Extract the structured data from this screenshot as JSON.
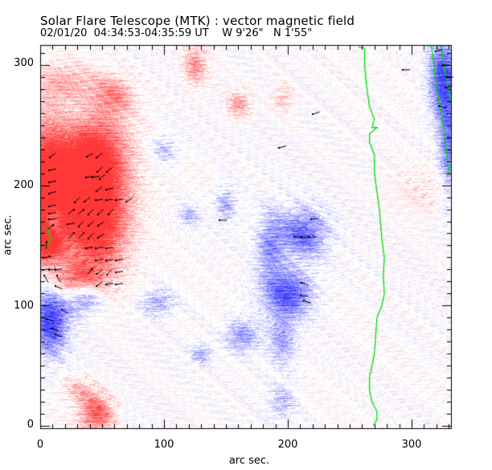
{
  "header": {
    "title": "Solar Flare Telescope (MTK) : vector magnetic field",
    "date": "02/01/20",
    "time_range": "04:34:53-04:35:59 UT",
    "lon": "W 9'26\"",
    "lat": "N 1'55\""
  },
  "chart_data": {
    "type": "heatmap",
    "title": "Solar Flare Telescope (MTK) : vector magnetic field",
    "subtitle": "02/01/20  04:34:53-04:35:59 UT    W 9'26\"   N 1'55\"",
    "xlabel": "arc sec.",
    "ylabel": "arc sec.",
    "xlim": [
      0,
      332
    ],
    "ylim": [
      0,
      318
    ],
    "xticks": [
      0,
      100,
      200,
      300
    ],
    "yticks": [
      0,
      100,
      200,
      300
    ],
    "xtick_labels": [
      "0",
      "100",
      "200",
      "300"
    ],
    "ytick_labels": [
      "0",
      "100",
      "200",
      "300"
    ],
    "minor_tick_step": 10,
    "colors": {
      "positive": "#ff4040",
      "negative": "#4040ff",
      "contour": "#00e000",
      "vector": "#000000",
      "background": "#ffffff"
    },
    "positive_regions": [
      {
        "x": 5,
        "y": 200,
        "sx": 12,
        "sy": 40,
        "a": 0.95
      },
      {
        "x": 35,
        "y": 200,
        "sx": 25,
        "sy": 30,
        "a": 0.9
      },
      {
        "x": 45,
        "y": 160,
        "sx": 18,
        "sy": 30,
        "a": 0.85
      },
      {
        "x": 5,
        "y": 155,
        "sx": 8,
        "sy": 12,
        "a": 1.0
      },
      {
        "x": 45,
        "y": 230,
        "sx": 18,
        "sy": 22,
        "a": 0.7
      },
      {
        "x": 60,
        "y": 275,
        "sx": 12,
        "sy": 12,
        "a": 0.5
      },
      {
        "x": 20,
        "y": 285,
        "sx": 20,
        "sy": 12,
        "a": 0.4
      },
      {
        "x": 125,
        "y": 300,
        "sx": 7,
        "sy": 12,
        "a": 0.6
      },
      {
        "x": 160,
        "y": 268,
        "sx": 7,
        "sy": 8,
        "a": 0.55
      },
      {
        "x": 196,
        "y": 273,
        "sx": 6,
        "sy": 8,
        "a": 0.35
      },
      {
        "x": 30,
        "y": 120,
        "sx": 14,
        "sy": 10,
        "a": 0.7
      },
      {
        "x": 45,
        "y": 10,
        "sx": 10,
        "sy": 12,
        "a": 0.85
      },
      {
        "x": 30,
        "y": 30,
        "sx": 10,
        "sy": 8,
        "a": 0.35
      },
      {
        "x": 310,
        "y": 195,
        "sx": 20,
        "sy": 15,
        "a": 0.2
      }
    ],
    "negative_regions": [
      {
        "x": 8,
        "y": 88,
        "sx": 10,
        "sy": 20,
        "a": 1.0
      },
      {
        "x": 35,
        "y": 107,
        "sx": 10,
        "sy": 10,
        "a": 0.8
      },
      {
        "x": 10,
        "y": 170,
        "sx": 5,
        "sy": 10,
        "a": 0.7
      },
      {
        "x": 200,
        "y": 110,
        "sx": 14,
        "sy": 14,
        "a": 0.85
      },
      {
        "x": 212,
        "y": 160,
        "sx": 14,
        "sy": 15,
        "a": 0.75
      },
      {
        "x": 185,
        "y": 150,
        "sx": 8,
        "sy": 20,
        "a": 0.55
      },
      {
        "x": 150,
        "y": 185,
        "sx": 6,
        "sy": 10,
        "a": 0.5
      },
      {
        "x": 120,
        "y": 175,
        "sx": 6,
        "sy": 6,
        "a": 0.4
      },
      {
        "x": 163,
        "y": 75,
        "sx": 10,
        "sy": 10,
        "a": 0.55
      },
      {
        "x": 195,
        "y": 70,
        "sx": 8,
        "sy": 15,
        "a": 0.5
      },
      {
        "x": 130,
        "y": 60,
        "sx": 6,
        "sy": 6,
        "a": 0.45
      },
      {
        "x": 95,
        "y": 103,
        "sx": 10,
        "sy": 8,
        "a": 0.45
      },
      {
        "x": 195,
        "y": 20,
        "sx": 8,
        "sy": 10,
        "a": 0.4
      },
      {
        "x": 100,
        "y": 230,
        "sx": 8,
        "sy": 8,
        "a": 0.4
      },
      {
        "x": 325,
        "y": 290,
        "sx": 8,
        "sy": 25,
        "a": 0.9
      },
      {
        "x": 330,
        "y": 230,
        "sx": 6,
        "sy": 30,
        "a": 0.7
      }
    ],
    "contours": [
      {
        "name": "limb-contour-1",
        "points": [
          [
            257,
            315
          ],
          [
            262,
            314
          ],
          [
            262,
            300
          ],
          [
            264,
            280
          ],
          [
            266,
            265
          ],
          [
            270,
            255
          ],
          [
            268,
            248
          ],
          [
            272,
            248
          ],
          [
            266,
            243
          ],
          [
            266,
            236
          ],
          [
            270,
            225
          ],
          [
            270,
            210
          ],
          [
            272,
            195
          ],
          [
            274,
            180
          ],
          [
            276,
            155
          ],
          [
            278,
            140
          ],
          [
            277,
            125
          ],
          [
            278,
            110
          ],
          [
            276,
            100
          ],
          [
            272,
            90
          ],
          [
            271,
            75
          ],
          [
            270,
            60
          ],
          [
            268,
            50
          ],
          [
            266,
            40
          ],
          [
            266,
            30
          ],
          [
            268,
            20
          ],
          [
            272,
            12
          ],
          [
            272,
            5
          ],
          [
            269,
            0
          ]
        ]
      },
      {
        "name": "limb-contour-2",
        "points": [
          [
            312,
            316
          ],
          [
            316,
            316
          ],
          [
            318,
            300
          ],
          [
            320,
            280
          ],
          [
            324,
            260
          ],
          [
            326,
            245
          ],
          [
            328,
            230
          ],
          [
            330,
            210
          ]
        ]
      },
      {
        "name": "limb-contour-3",
        "points": [
          [
            321,
            316
          ],
          [
            324,
            316
          ],
          [
            326,
            300
          ],
          [
            330,
            280
          ],
          [
            332,
            268
          ]
        ]
      },
      {
        "name": "spot-contour",
        "points": [
          [
            3,
            165
          ],
          [
            7,
            162
          ],
          [
            8,
            156
          ],
          [
            6,
            150
          ],
          [
            3,
            148
          ]
        ]
      }
    ],
    "vectors": [
      [
        10,
        225,
        35
      ],
      [
        10,
        213,
        10
      ],
      [
        10,
        203,
        10
      ],
      [
        10,
        194,
        15
      ],
      [
        10,
        183,
        10
      ],
      [
        10,
        177,
        10
      ],
      [
        40,
        225,
        30
      ],
      [
        48,
        225,
        40
      ],
      [
        48,
        213,
        45
      ],
      [
        56,
        213,
        40
      ],
      [
        40,
        207,
        10
      ],
      [
        45,
        207,
        10
      ],
      [
        50,
        207,
        40
      ],
      [
        48,
        197,
        40
      ],
      [
        56,
        197,
        10
      ],
      [
        30,
        188,
        45
      ],
      [
        38,
        188,
        40
      ],
      [
        48,
        188,
        10
      ],
      [
        56,
        188,
        10
      ],
      [
        64,
        188,
        10
      ],
      [
        72,
        188,
        30
      ],
      [
        25,
        178,
        220
      ],
      [
        33,
        178,
        220
      ],
      [
        41,
        178,
        45
      ],
      [
        49,
        178,
        45
      ],
      [
        57,
        178,
        45
      ],
      [
        25,
        168,
        10
      ],
      [
        33,
        168,
        45
      ],
      [
        41,
        168,
        40
      ],
      [
        49,
        168,
        30
      ],
      [
        25,
        158,
        225
      ],
      [
        33,
        158,
        225
      ],
      [
        41,
        158,
        45
      ],
      [
        49,
        158,
        30
      ],
      [
        40,
        148,
        10
      ],
      [
        48,
        148,
        10
      ],
      [
        56,
        148,
        10
      ],
      [
        48,
        138,
        10
      ],
      [
        56,
        138,
        10
      ],
      [
        64,
        138,
        10
      ],
      [
        40,
        128,
        230
      ],
      [
        48,
        128,
        40
      ],
      [
        56,
        128,
        45
      ],
      [
        64,
        128,
        10
      ],
      [
        48,
        118,
        40
      ],
      [
        56,
        118,
        10
      ],
      [
        64,
        118,
        10
      ],
      [
        5,
        140,
        200
      ],
      [
        5,
        130,
        10
      ],
      [
        10,
        130,
        10
      ],
      [
        15,
        130,
        10
      ],
      [
        5,
        122,
        300
      ],
      [
        15,
        122,
        300
      ],
      [
        5,
        150,
        270
      ],
      [
        8,
        165,
        220
      ],
      [
        10,
        172,
        10
      ],
      [
        15,
        115,
        340
      ],
      [
        20,
        95,
        340
      ],
      [
        8,
        88,
        340
      ],
      [
        12,
        80,
        340
      ],
      [
        15,
        75,
        340
      ],
      [
        148,
        171,
        0
      ],
      [
        208,
        157,
        0
      ],
      [
        214,
        157,
        0
      ],
      [
        220,
        157,
        5
      ],
      [
        222,
        172,
        10
      ],
      [
        214,
        118,
        340
      ],
      [
        213,
        108,
        0
      ],
      [
        216,
        103,
        340
      ],
      [
        223,
        260,
        20
      ],
      [
        196,
        232,
        15
      ],
      [
        296,
        296,
        0
      ],
      [
        322,
        312,
        20
      ],
      [
        328,
        300,
        0
      ],
      [
        331,
        290,
        0
      ],
      [
        330,
        282,
        20
      ],
      [
        325,
        265,
        340
      ]
    ]
  }
}
